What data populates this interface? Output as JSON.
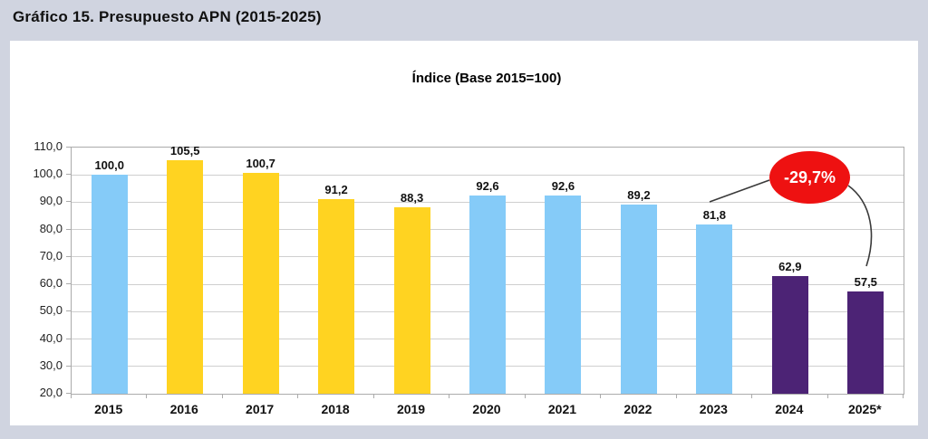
{
  "header": {
    "title": "Gráfico 15. Presupuesto APN (2015-2025)"
  },
  "chart_data": {
    "type": "bar",
    "title": "Índice (Base 2015=100)",
    "categories": [
      "2015",
      "2016",
      "2017",
      "2018",
      "2019",
      "2020",
      "2021",
      "2022",
      "2023",
      "2024",
      "2025*"
    ],
    "values": [
      100.0,
      105.5,
      100.7,
      91.2,
      88.3,
      92.6,
      92.6,
      89.2,
      81.8,
      62.9,
      57.5
    ],
    "value_labels": [
      "100,0",
      "105,5",
      "100,7",
      "91,2",
      "88,3",
      "92,6",
      "92,6",
      "89,2",
      "81,8",
      "62,9",
      "57,5"
    ],
    "bar_colors": [
      "blue",
      "yellow",
      "yellow",
      "yellow",
      "yellow",
      "blue",
      "blue",
      "blue",
      "blue",
      "purple",
      "purple"
    ],
    "palette": {
      "blue": "#85CBF8",
      "yellow": "#FFD321",
      "purple": "#4C2375"
    },
    "xlabel": "",
    "ylabel": "",
    "ylim": [
      20,
      110
    ],
    "ytick_step": 10,
    "ytick_labels": [
      "110,0",
      "100,0",
      "90,0",
      "80,0",
      "70,0",
      "60,0",
      "50,0",
      "40,0",
      "30,0",
      "20,0"
    ],
    "grid": true,
    "legend": null,
    "annotation": {
      "label": "-29,7%",
      "color": "#EE1111",
      "text_color": "#FFFFFF",
      "connects": [
        "2023",
        "2025*"
      ]
    }
  },
  "colors": {
    "background": "#D0D4E0",
    "panel": "#FFFFFF",
    "grid": "#CFCFCF",
    "axis": "#ABABAB",
    "connector": "#3A3A3A",
    "text": "#1A1A1A"
  }
}
